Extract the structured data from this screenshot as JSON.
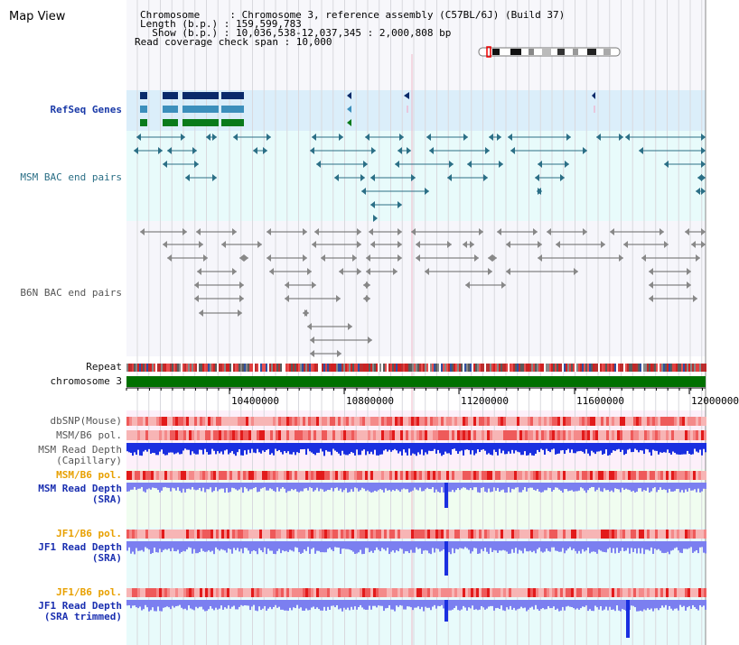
{
  "app": {
    "title": "Map View"
  },
  "header": {
    "line1": "Chromosome     : Chromosome 3, reference assembly (C57BL/6J) (Build 37)",
    "line2": "Length (b.p.) : 159,599,783",
    "line3": "  Show (b.p.) : 10,036,538-12,037,345 : 2,000,808 bp",
    "line4": "Read coverage check span : 10,000"
  },
  "tracks": {
    "refseq": "RefSeq Genes",
    "msm_bac": "MSM BAC end pairs",
    "b6n_bac": "B6N BAC end pairs",
    "repeat": "Repeat",
    "chromosome": "chromosome 3",
    "dbsnp": "dbSNP(Mouse)",
    "msm_b6_pol_1": "MSM/B6 pol.",
    "msm_read_depth_cap_1": "MSM Read Depth",
    "msm_read_depth_cap_2": "(Capillary)",
    "msm_b6_pol_2": "MSM/B6 pol.",
    "msm_read_depth_sra_1": "MSM Read Depth",
    "msm_read_depth_sra_2": "(SRA)",
    "jf1_b6_pol_1": "JF1/B6 pol.",
    "jf1_read_depth_sra_1": "JF1 Read Depth",
    "jf1_read_depth_sra_2": "(SRA)",
    "jf1_b6_pol_2": "JF1/B6 pol.",
    "jf1_read_depth_trim_1": "JF1 Read Depth",
    "jf1_read_depth_trim_2": "(SRA trimmed)"
  },
  "axis": {
    "ticks": [
      "10400000",
      "10800000",
      "11200000",
      "11600000",
      "12000000"
    ]
  },
  "colors": {
    "refseq_band": "#dbeefa",
    "light_cyan": "#e8fbfb",
    "bac_line": "#2b6f86",
    "b6n_line": "#666666",
    "chromosome_bar": "#007000",
    "pol_red": "#e83030",
    "depth_dark_blue": "#1a2fe0",
    "depth_light_blue": "#7b7ff0",
    "pink_bg": "#fdf0fa",
    "mint_bg": "#f0fdf0"
  }
}
